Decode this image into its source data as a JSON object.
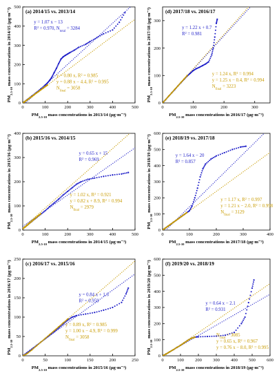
{
  "colors": {
    "blue": "#1f1fc8",
    "gold": "#c89b00",
    "axis": "#000000"
  },
  "chart_data": [
    {
      "type": "scatter",
      "title": "(a) 2014/15 vs. 2013/14",
      "xlabel": "PM2.5-10 mass concentrations in 2013/14 (μg·m⁻³)",
      "ylabel": "PM2.5-10 mass concentrations in 2014/15 (μg·m⁻³)",
      "xlim": [
        0,
        500
      ],
      "ylim": [
        0,
        500
      ],
      "xticks": [
        0,
        100,
        200,
        300,
        400,
        500
      ],
      "yticks": [
        0,
        100,
        200,
        300,
        400,
        500
      ],
      "blue_fit": {
        "slope": 1.07,
        "intercept": -13
      },
      "blue_eq": [
        "y = 1.07 x − 13",
        "R² = 0.970, N_total = 3284"
      ],
      "gold_fit": {
        "slope": 0.88,
        "intercept": -4.4
      },
      "gold_eq": [
        "y = 0.80 x, R² = 0.985",
        "y = 0.88 x − 4.4, R² = 0.995",
        "N_final = 3058"
      ],
      "series": [
        {
          "name": "all",
          "color": "blue",
          "points": [
            [
              0,
              0
            ],
            [
              20,
              18
            ],
            [
              40,
              36
            ],
            [
              60,
              54
            ],
            [
              80,
              73
            ],
            [
              100,
              93
            ],
            [
              110,
              104
            ],
            [
              120,
              118
            ],
            [
              130,
              135
            ],
            [
              140,
              158
            ],
            [
              150,
              180
            ],
            [
              160,
              205
            ],
            [
              170,
              228
            ],
            [
              180,
              240
            ],
            [
              190,
              248
            ],
            [
              200,
              255
            ],
            [
              210,
              262
            ],
            [
              230,
              275
            ],
            [
              250,
              290
            ],
            [
              280,
              305
            ],
            [
              300,
              320
            ],
            [
              330,
              340
            ],
            [
              360,
              360
            ],
            [
              400,
              380
            ],
            [
              430,
              420
            ],
            [
              455,
              470
            ]
          ]
        },
        {
          "name": "final",
          "color": "gold",
          "points": [
            [
              0,
              0
            ],
            [
              10,
              8
            ],
            [
              20,
              16
            ],
            [
              30,
              25
            ],
            [
              40,
              33
            ],
            [
              50,
              42
            ],
            [
              60,
              51
            ],
            [
              70,
              59
            ],
            [
              80,
              68
            ],
            [
              90,
              76
            ],
            [
              100,
              85
            ],
            [
              110,
              93
            ]
          ]
        }
      ]
    },
    {
      "type": "scatter",
      "title": "(d) 2017/18 vs. 2016/17",
      "xlabel": "PM2.5-10 mass concentrations in 2016/17 (μg·m⁻³)",
      "ylabel": "PM2.5-10 mass concentrations in 2017/18 (μg·m⁻³)",
      "xlim": [
        0,
        350
      ],
      "ylim": [
        0,
        350
      ],
      "xticks": [
        0,
        100,
        200,
        300
      ],
      "yticks": [
        0,
        100,
        200,
        300
      ],
      "blue_fit": {
        "slope": 1.22,
        "intercept": 0.7
      },
      "blue_eq": [
        "y = 1.22 x + 0.7",
        "R² = 0.981"
      ],
      "gold_fit": {
        "slope": 1.25,
        "intercept": -0.4
      },
      "gold_eq": [
        "y = 1.24 x, R² = 0.994",
        "y = 1.25 x − 0.4, R² = 0.994",
        "N_final = 3223"
      ],
      "series": [
        {
          "name": "all",
          "color": "blue",
          "points": [
            [
              0,
              0
            ],
            [
              10,
              12
            ],
            [
              20,
              25
            ],
            [
              30,
              37
            ],
            [
              40,
              49
            ],
            [
              50,
              62
            ],
            [
              60,
              74
            ],
            [
              70,
              86
            ],
            [
              80,
              98
            ],
            [
              90,
              108
            ],
            [
              100,
              118
            ],
            [
              110,
              125
            ],
            [
              120,
              130
            ],
            [
              130,
              136
            ],
            [
              140,
              142
            ],
            [
              150,
              150
            ],
            [
              160,
              175
            ],
            [
              165,
              200
            ],
            [
              170,
              240
            ],
            [
              175,
              290
            ],
            [
              178,
              305
            ]
          ]
        },
        {
          "name": "final",
          "color": "gold",
          "points": [
            [
              0,
              0
            ],
            [
              10,
              12
            ],
            [
              20,
              25
            ],
            [
              30,
              37
            ],
            [
              40,
              50
            ],
            [
              50,
              62
            ],
            [
              60,
              75
            ],
            [
              70,
              87
            ],
            [
              80,
              100
            ]
          ]
        }
      ]
    },
    {
      "type": "scatter",
      "title": "(b) 2015/16 vs. 2014/15",
      "xlabel": "PM2.5-10 mass concentrations in 2014/15 (μg·m⁻³)",
      "ylabel": "PM2.5-10 mass concentrations in 2015/16 (μg·m⁻³)",
      "xlim": [
        0,
        500
      ],
      "ylim": [
        0,
        400
      ],
      "xticks": [
        0,
        100,
        200,
        300,
        400,
        500
      ],
      "yticks": [
        0,
        100,
        200,
        300,
        400
      ],
      "blue_fit": {
        "slope": 0.65,
        "intercept": 15
      },
      "blue_eq": [
        "y = 0.65 x + 15",
        "R² = 0.969"
      ],
      "gold_fit": {
        "slope": 0.82,
        "intercept": 8.9
      },
      "gold_eq": [
        "y = 1.02 x, R² = 0.921",
        "y = 0.82 x + 8.9, R² = 0.994",
        "N_final = 2979"
      ],
      "series": [
        {
          "name": "all",
          "color": "blue",
          "points": [
            [
              0,
              5
            ],
            [
              20,
              20
            ],
            [
              40,
              35
            ],
            [
              60,
              50
            ],
            [
              80,
              65
            ],
            [
              100,
              80
            ],
            [
              120,
              97
            ],
            [
              140,
              112
            ],
            [
              160,
              128
            ],
            [
              180,
              145
            ],
            [
              200,
              160
            ],
            [
              220,
              175
            ],
            [
              240,
              190
            ],
            [
              260,
              200
            ],
            [
              290,
              210
            ],
            [
              320,
              215
            ],
            [
              360,
              222
            ],
            [
              400,
              228
            ],
            [
              440,
              232
            ],
            [
              470,
              238
            ]
          ]
        },
        {
          "name": "final",
          "color": "gold",
          "points": [
            [
              0,
              5
            ],
            [
              10,
              12
            ],
            [
              20,
              20
            ],
            [
              30,
              28
            ],
            [
              40,
              36
            ],
            [
              50,
              44
            ],
            [
              60,
              52
            ],
            [
              70,
              60
            ],
            [
              80,
              67
            ]
          ]
        }
      ]
    },
    {
      "type": "scatter",
      "title": "(e) 2018/19 vs. 2017/18",
      "xlabel": "PM2.5-10 mass concentrations in 2017/18 (μg·m⁻³)",
      "ylabel": "PM2.5-10 mass concentrations in 2018/19 (μg·m⁻³)",
      "xlim": [
        0,
        400
      ],
      "ylim": [
        0,
        600
      ],
      "xticks": [
        0,
        100,
        200,
        300,
        400
      ],
      "yticks": [
        0,
        100,
        200,
        300,
        400,
        500,
        600
      ],
      "blue_fit": {
        "slope": 1.64,
        "intercept": -20
      },
      "blue_eq": [
        "y = 1.64 x − 20",
        "R² = 0.857"
      ],
      "gold_fit": {
        "slope": 1.21,
        "intercept": -2.0
      },
      "gold_eq": [
        "y = 1.17 x, R² = 0.997",
        "y = 1.21 x − 2.0, R² = 0.998",
        "N_final = 3129"
      ],
      "series": [
        {
          "name": "all",
          "color": "blue",
          "points": [
            [
              0,
              0
            ],
            [
              10,
              12
            ],
            [
              20,
              24
            ],
            [
              30,
              36
            ],
            [
              40,
              48
            ],
            [
              50,
              60
            ],
            [
              60,
              72
            ],
            [
              70,
              84
            ],
            [
              80,
              96
            ],
            [
              90,
              108
            ],
            [
              100,
              120
            ],
            [
              110,
              150
            ],
            [
              120,
              200
            ],
            [
              130,
              260
            ],
            [
              140,
              330
            ],
            [
              150,
              380
            ],
            [
              160,
              410
            ],
            [
              180,
              440
            ],
            [
              200,
              460
            ],
            [
              230,
              480
            ],
            [
              260,
              500
            ],
            [
              290,
              515
            ],
            [
              310,
              520
            ]
          ]
        },
        {
          "name": "final",
          "color": "gold",
          "points": [
            [
              0,
              0
            ],
            [
              10,
              12
            ],
            [
              20,
              24
            ],
            [
              30,
              36
            ],
            [
              40,
              48
            ],
            [
              50,
              60
            ],
            [
              60,
              72
            ],
            [
              70,
              84
            ],
            [
              80,
              96
            ],
            [
              90,
              108
            ]
          ]
        }
      ]
    },
    {
      "type": "scatter",
      "title": "(c) 2016/17 vs. 2015/16",
      "xlabel": "PM2.5-10 mass concentrations in 2015/16 (μg·m⁻³)",
      "ylabel": "PM2.5-10 mass concentrations in 2016/17 (μg·m⁻³)",
      "xlim": [
        0,
        250
      ],
      "ylim": [
        0,
        250
      ],
      "xticks": [
        0,
        50,
        100,
        150,
        200,
        250
      ],
      "yticks": [
        0,
        50,
        100,
        150,
        200,
        250
      ],
      "blue_fit": {
        "slope": 0.84,
        "intercept": 1.6
      },
      "blue_eq": [
        "y = 0.84 x + 1.6",
        "R² = 0.959"
      ],
      "gold_fit": {
        "slope": 1.0,
        "intercept": -4.9
      },
      "gold_eq": [
        "y = 0.89 x, R² = 0.985",
        "y = 1.00 x − 4.9, R² = 0.999",
        "N_final = 3058"
      ],
      "series": [
        {
          "name": "all",
          "color": "blue",
          "points": [
            [
              0,
              0
            ],
            [
              10,
              8
            ],
            [
              20,
              17
            ],
            [
              30,
              26
            ],
            [
              40,
              35
            ],
            [
              50,
              44
            ],
            [
              60,
              53
            ],
            [
              70,
              62
            ],
            [
              80,
              72
            ],
            [
              90,
              82
            ],
            [
              100,
              92
            ],
            [
              110,
              100
            ],
            [
              120,
              104
            ],
            [
              140,
              108
            ],
            [
              160,
              112
            ],
            [
              180,
              118
            ],
            [
              200,
              125
            ],
            [
              220,
              138
            ],
            [
              230,
              160
            ],
            [
              235,
              175
            ]
          ]
        },
        {
          "name": "final",
          "color": "gold",
          "points": [
            [
              0,
              0
            ],
            [
              10,
              6
            ],
            [
              20,
              15
            ],
            [
              30,
              25
            ],
            [
              40,
              35
            ],
            [
              50,
              45
            ],
            [
              60,
              55
            ],
            [
              70,
              65
            ],
            [
              80,
              75
            ],
            [
              90,
              85
            ],
            [
              100,
              95
            ]
          ]
        }
      ]
    },
    {
      "type": "scatter",
      "title": "(f) 2019/20 vs. 2018/19",
      "xlabel": "PM2.5-10 mass concentrations in 2018/19 (μg·m⁻³)",
      "ylabel": "PM2.5-10 mass concentrations in 2019/20 (μg·m⁻³)",
      "xlim": [
        0,
        600
      ],
      "ylim": [
        0,
        600
      ],
      "xticks": [
        0,
        100,
        200,
        300,
        400,
        500,
        600
      ],
      "yticks": [
        0,
        100,
        200,
        300,
        400,
        500,
        600
      ],
      "blue_fit": {
        "slope": 0.64,
        "intercept": -2.1
      },
      "blue_eq": [
        "y = 0.64 x − 2.1",
        "R² = 0.931"
      ],
      "gold_fit": {
        "slope": 0.76,
        "intercept": -8.0
      },
      "gold_eq": [
        "N_final = 3085",
        "y = 0.65 x, R² = 0.967",
        "y = 0.76 x − 8.0, R² = 0.995"
      ],
      "series": [
        {
          "name": "all",
          "color": "blue",
          "points": [
            [
              0,
              0
            ],
            [
              20,
              12
            ],
            [
              40,
              25
            ],
            [
              60,
              38
            ],
            [
              80,
              52
            ],
            [
              100,
              65
            ],
            [
              120,
              80
            ],
            [
              140,
              95
            ],
            [
              160,
              108
            ],
            [
              180,
              116
            ],
            [
              200,
              118
            ],
            [
              250,
              120
            ],
            [
              300,
              122
            ],
            [
              350,
              128
            ],
            [
              400,
              145
            ],
            [
              440,
              200
            ],
            [
              460,
              240
            ],
            [
              480,
              330
            ],
            [
              500,
              420
            ],
            [
              510,
              470
            ]
          ]
        },
        {
          "name": "final",
          "color": "gold",
          "points": [
            [
              0,
              0
            ],
            [
              20,
              12
            ],
            [
              40,
              25
            ],
            [
              60,
              38
            ],
            [
              80,
              52
            ],
            [
              100,
              65
            ],
            [
              120,
              80
            ],
            [
              140,
              95
            ],
            [
              160,
              108
            ],
            [
              180,
              115
            ]
          ]
        }
      ]
    }
  ]
}
